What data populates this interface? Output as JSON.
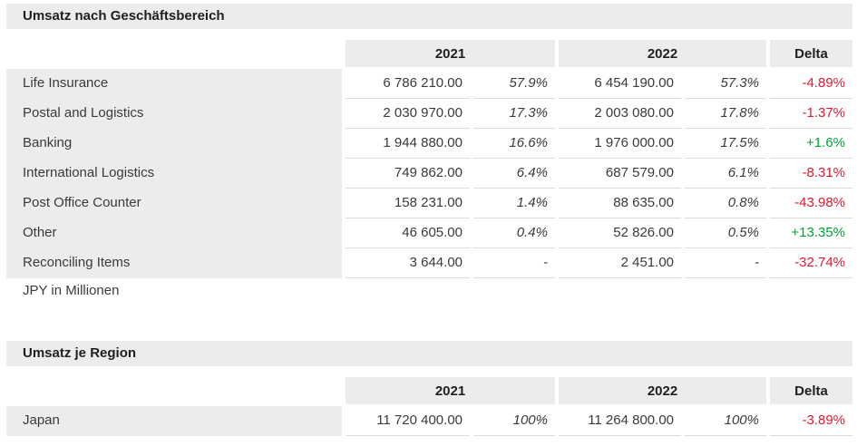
{
  "colors": {
    "band": "#ececec",
    "negative": "#e01931",
    "positive": "#00a336",
    "row_separator": "#dcdcdc"
  },
  "sections": [
    {
      "title": "Umsatz nach Geschäftsbereich",
      "headers": {
        "col2021": "2021",
        "col2022": "2022",
        "delta": "Delta"
      },
      "rows": [
        {
          "label": "Life Insurance",
          "v2021": "6 786 210.00",
          "p2021": "57.9%",
          "v2022": "6 454 190.00",
          "p2022": "57.3%",
          "delta": "-4.89%"
        },
        {
          "label": "Postal and Logistics",
          "v2021": "2 030 970.00",
          "p2021": "17.3%",
          "v2022": "2 003 080.00",
          "p2022": "17.8%",
          "delta": "-1.37%"
        },
        {
          "label": "Banking",
          "v2021": "1 944 880.00",
          "p2021": "16.6%",
          "v2022": "1 976 000.00",
          "p2022": "17.5%",
          "delta": "+1.6%"
        },
        {
          "label": "International Logistics",
          "v2021": "749 862.00",
          "p2021": "6.4%",
          "v2022": "687 579.00",
          "p2022": "6.1%",
          "delta": "-8.31%"
        },
        {
          "label": "Post Office Counter",
          "v2021": "158 231.00",
          "p2021": "1.4%",
          "v2022": "88 635.00",
          "p2022": "0.8%",
          "delta": "-43.98%"
        },
        {
          "label": "Other",
          "v2021": "46 605.00",
          "p2021": "0.4%",
          "v2022": "52 826.00",
          "p2022": "0.5%",
          "delta": "+13.35%"
        },
        {
          "label": "Reconciling Items",
          "v2021": "3 644.00",
          "p2021": "-",
          "v2022": "2 451.00",
          "p2022": "-",
          "delta": "-32.74%"
        }
      ],
      "footnote": "JPY in Millionen"
    },
    {
      "title": "Umsatz je Region",
      "headers": {
        "col2021": "2021",
        "col2022": "2022",
        "delta": "Delta"
      },
      "rows": [
        {
          "label": "Japan",
          "v2021": "11 720 400.00",
          "p2021": "100%",
          "v2022": "11 264 800.00",
          "p2022": "100%",
          "delta": "-3.89%"
        }
      ]
    }
  ],
  "chart_data": [
    {
      "type": "table",
      "title": "Umsatz nach Geschäftsbereich",
      "unit": "JPY in Millionen",
      "columns": [
        "Geschäftsbereich",
        "2021",
        "2021 %",
        "2022",
        "2022 %",
        "Delta"
      ],
      "rows": [
        [
          "Life Insurance",
          6786210.0,
          "57.9%",
          6454190.0,
          "57.3%",
          "-4.89%"
        ],
        [
          "Postal and Logistics",
          2030970.0,
          "17.3%",
          2003080.0,
          "17.8%",
          "-1.37%"
        ],
        [
          "Banking",
          1944880.0,
          "16.6%",
          1976000.0,
          "17.5%",
          "+1.6%"
        ],
        [
          "International Logistics",
          749862.0,
          "6.4%",
          687579.0,
          "6.1%",
          "-8.31%"
        ],
        [
          "Post Office Counter",
          158231.0,
          "1.4%",
          88635.0,
          "0.8%",
          "-43.98%"
        ],
        [
          "Other",
          46605.0,
          "0.4%",
          52826.0,
          "0.5%",
          "+13.35%"
        ],
        [
          "Reconciling Items",
          3644.0,
          null,
          2451.0,
          null,
          "-32.74%"
        ]
      ]
    },
    {
      "type": "table",
      "title": "Umsatz je Region",
      "unit": "JPY in Millionen",
      "columns": [
        "Region",
        "2021",
        "2021 %",
        "2022",
        "2022 %",
        "Delta"
      ],
      "rows": [
        [
          "Japan",
          11720400.0,
          "100%",
          11264800.0,
          "100%",
          "-3.89%"
        ]
      ]
    }
  ]
}
